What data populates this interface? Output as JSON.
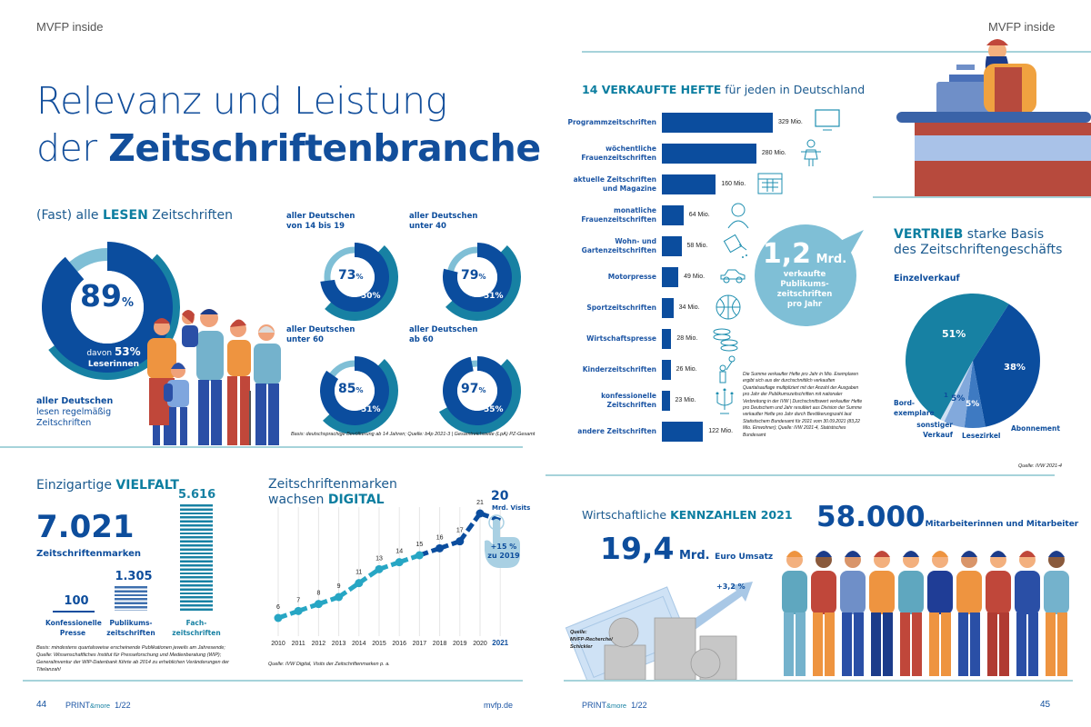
{
  "header": {
    "left": "MVFP inside",
    "right": "MVFP inside"
  },
  "title": {
    "line1": "Relevanz und Leistung",
    "line2_prefix": "der ",
    "line2_bold": "Zeitschriftenbranche"
  },
  "reading": {
    "heading_prefix": "(Fast) alle ",
    "heading_bold": "LESEN",
    "heading_suffix": " Zeitschriften",
    "main": {
      "value": "89",
      "unit": "%",
      "sub_prefix": "davon ",
      "sub_value": "53%",
      "sub_label": "Leserinnen",
      "caption_bold": "aller Deutschen",
      "caption_1": "lesen regelmäßig",
      "caption_2": "Zeitschriften",
      "pct": 89,
      "female_pct": 53
    },
    "groups": [
      {
        "label1": "aller Deutschen",
        "label2": "von 14 bis 19",
        "value": "73",
        "unit": "%",
        "female": "50%",
        "pct": 73,
        "female_pct": 50
      },
      {
        "label1": "aller Deutschen",
        "label2": "unter 40",
        "value": "79",
        "unit": "%",
        "female": "51%",
        "pct": 79,
        "female_pct": 51
      },
      {
        "label1": "aller Deutschen",
        "label2": "unter 60",
        "value": "85",
        "unit": "%",
        "female": "51%",
        "pct": 85,
        "female_pct": 51
      },
      {
        "label1": "aller Deutschen",
        "label2": "ab 60",
        "value": "97",
        "unit": "%",
        "female": "55%",
        "pct": 97,
        "female_pct": 55
      }
    ],
    "note": "Basis: deutschsprachige Bevölkerung ab 14 Jahren; Quelle: b4p 2021-3 | Gesamtreichweite (LpA) PZ-Gesamt"
  },
  "vielfalt": {
    "heading_prefix": "Einzigartige ",
    "heading_bold": "VIELFALT",
    "total": "7.021",
    "total_label": "Zeitschriftenmarken",
    "items": [
      {
        "value": "100",
        "label1": "Konfessionelle",
        "label2": "Presse",
        "count": 100
      },
      {
        "value": "1.305",
        "label1": "Publikums-",
        "label2": "zeitschriften",
        "count": 1305
      },
      {
        "value": "5.616",
        "label1": "Fach-",
        "label2": "zeitschriften",
        "count": 5616
      }
    ],
    "note": "Basis: mindestens quartalsweise erscheinende Publikationen jeweils am Jahresende; Quelle: Wissenschaftliches Institut für Presseforschung und Medienberatung (WIP); Generalinventur der WIP-Datenbank führte ab 2014 zu erheblichen Veränderungen der Titelanzahl"
  },
  "digital": {
    "heading_line1": "Zeitschriftenmarken",
    "heading_prefix": "wachsen ",
    "heading_bold": "DIGITAL",
    "highlight_value": "20",
    "highlight_unit": "Mrd. Visits",
    "growth_1": "+15 %",
    "growth_2": "zu 2019",
    "note": "Quelle: IVW Digital, Visits der Zeitschriftenmarken p. a."
  },
  "chart_data": [
    {
      "type": "line",
      "title": "Zeitschriftenmarken wachsen DIGITAL",
      "ylabel": "Mrd. Visits",
      "x": [
        "2010",
        "2011",
        "2012",
        "2013",
        "2014",
        "2015",
        "2016",
        "2017",
        "2018",
        "2019",
        "2020",
        "2021"
      ],
      "values": [
        6,
        7,
        8,
        9,
        11,
        13,
        14,
        15,
        16,
        17,
        21,
        20
      ],
      "ylim": [
        0,
        24
      ],
      "grid": true
    },
    {
      "type": "bar",
      "title": "14 VERKAUFTE HEFTE für jeden in Deutschland",
      "categories": [
        "Programmzeitschriften",
        "wöchentliche Frauenzeitschriften",
        "aktuelle Zeitschriften und Magazine",
        "monatliche Frauenzeitschriften",
        "Wohn- und Gartenzeitschriften",
        "Motorpresse",
        "Sportzeitschriften",
        "Wirtschaftspresse",
        "Kinderzeitschriften",
        "konfessionelle Zeitschriften",
        "andere Zeitschriften"
      ],
      "values": [
        329,
        280,
        160,
        64,
        58,
        49,
        34,
        28,
        26,
        23,
        122
      ],
      "unit": "Mio."
    },
    {
      "type": "pie",
      "title": "VERTRIEB starke Basis des Zeitschriftengeschäfts",
      "categories": [
        "Einzelverkauf",
        "Abonnement",
        "Lesezirkel",
        "sonstiger Verkauf",
        "Bordexemplare"
      ],
      "values": [
        51,
        38,
        5,
        5,
        1
      ]
    }
  ],
  "sales": {
    "heading_bold": "14 VERKAUFTE HEFTE",
    "heading_suffix": " für jeden in Deutschland",
    "rows": [
      {
        "label1": "Programmzeitschriften",
        "label2": "",
        "value": "329 Mio.",
        "icon": "tv-icon"
      },
      {
        "label1": "wöchentliche",
        "label2": "Frauenzeitschriften",
        "value": "280 Mio.",
        "icon": "woman-icon"
      },
      {
        "label1": "aktuelle Zeitschriften",
        "label2": "und Magazine",
        "value": "160 Mio.",
        "icon": "calendar-icon"
      },
      {
        "label1": "monatliche",
        "label2": "Frauenzeitschriften",
        "value": "64 Mio.",
        "icon": "woman-face-icon"
      },
      {
        "label1": "Wohn- und",
        "label2": "Gartenzeitschriften",
        "value": "58 Mio.",
        "icon": "watering-can-icon"
      },
      {
        "label1": "Motorpresse",
        "label2": "",
        "value": "49 Mio.",
        "icon": "car-icon"
      },
      {
        "label1": "Sportzeitschriften",
        "label2": "",
        "value": "34 Mio.",
        "icon": "basketball-icon"
      },
      {
        "label1": "Wirtschaftspresse",
        "label2": "",
        "value": "28 Mio.",
        "icon": "coins-icon"
      },
      {
        "label1": "Kinderzeitschriften",
        "label2": "",
        "value": "26 Mio.",
        "icon": "child-balloon-icon"
      },
      {
        "label1": "konfessionelle",
        "label2": "Zeitschriften",
        "value": "23 Mio.",
        "icon": "candelabra-icon"
      },
      {
        "label1": "andere Zeitschriften",
        "label2": "",
        "value": "122 Mio.",
        "icon": ""
      }
    ],
    "bubble_value": "1,2",
    "bubble_unit": "Mrd.",
    "bubble_1": "verkaufte",
    "bubble_2": "Publikums-",
    "bubble_3": "zeitschriften",
    "bubble_4": "pro Jahr",
    "note": "Die Summe verkaufter Hefte pro Jahr in Mio. Exemplaren ergibt sich aus der durchschnittlich verkauften Quartalsauflage multipliziert mit der Anzahl der Ausgaben pro Jahr der Publikumszeitschriften mit nationaler Verbreitung in der IVW | Durchschnittswert verkaufter Hefte pro Deutschem und Jahr resultiert aus Division der Summe verkaufter Hefte pro Jahr durch Bevölkerungszahl laut Statistischem Bundesamt für 2021 vom 30.09.2021 (83,22 Mio. Einwohner); Quelle: IVW 2021-4, Statistisches Bundesamt"
  },
  "vertrieb": {
    "heading_bold": "VERTRIEB",
    "heading_suffix": " starke Basis",
    "heading_line2": "des Zeitschriftengeschäfts",
    "einzel_label": "Einzelverkauf",
    "einzel_value": "51%",
    "abo_label": "Abonnement",
    "abo_value": "38%",
    "lese_label": "Lesezirkel",
    "lese_value": "5%",
    "sonst_label1": "sonstiger",
    "sonst_label2": "Verkauf",
    "sonst_value": "5%",
    "bord_label1": "Bord-",
    "bord_label2": "exemplare",
    "bord_value": "1",
    "source": "Quelle: IVW 2021-4"
  },
  "kennzahlen": {
    "heading_prefix": "Wirtschaftliche ",
    "heading_bold": "KENNZAHLEN 2021",
    "revenue_value": "19,4",
    "revenue_unit": "Mrd.",
    "revenue_label": "Euro Umsatz",
    "growth": "+3,2 %",
    "source_1": "Quelle:",
    "source_2": "MVFP-Recherche/",
    "source_3": "Schickler",
    "employees_value": "58.000",
    "employees_label": "Mitarbeiterinnen und Mitarbeiter"
  },
  "footer": {
    "left_page": "44",
    "left_mag_print": "PRINT",
    "left_mag_more": "&more",
    "left_issue": "1/22",
    "left_url": "mvfp.de",
    "right_mag_print": "PRINT",
    "right_mag_more": "&more",
    "right_issue": "1/22",
    "right_page": "45"
  },
  "colors": {
    "navy": "#0b4d9e",
    "teal": "#1781a3",
    "light": "#7fbfd6",
    "rule": "#a6d3da"
  }
}
